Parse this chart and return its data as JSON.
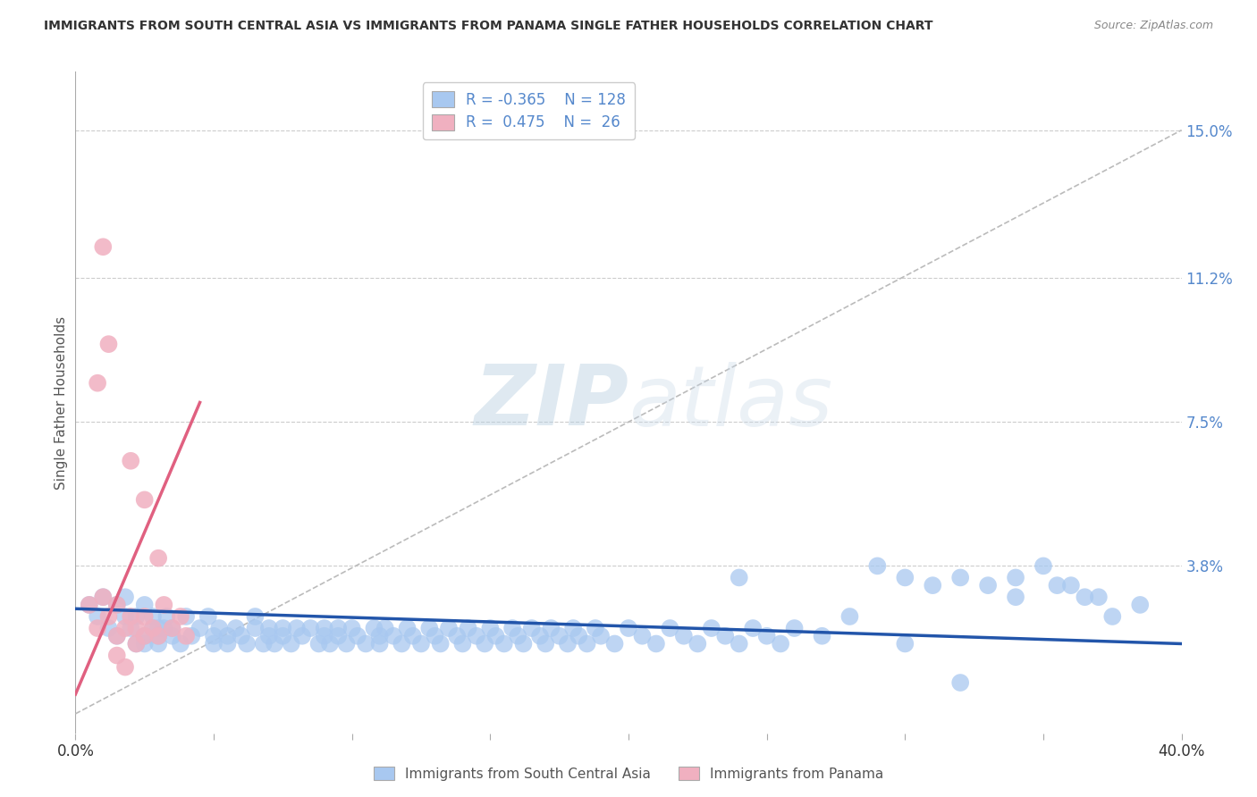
{
  "title": "IMMIGRANTS FROM SOUTH CENTRAL ASIA VS IMMIGRANTS FROM PANAMA SINGLE FATHER HOUSEHOLDS CORRELATION CHART",
  "source": "Source: ZipAtlas.com",
  "ylabel": "Single Father Households",
  "watermark_zip": "ZIP",
  "watermark_atlas": "atlas",
  "xlim": [
    0.0,
    0.4
  ],
  "ylim": [
    -0.005,
    0.165
  ],
  "ytick_positions": [
    0.038,
    0.075,
    0.112,
    0.15
  ],
  "ytick_labels": [
    "3.8%",
    "7.5%",
    "11.2%",
    "15.0%"
  ],
  "legend1_R": "-0.365",
  "legend1_N": "128",
  "legend2_R": "0.475",
  "legend2_N": "26",
  "legend1_label": "Immigrants from South Central Asia",
  "legend2_label": "Immigrants from Panama",
  "blue_color": "#a8c8f0",
  "blue_line_color": "#2255aa",
  "pink_color": "#f0b0c0",
  "pink_line_color": "#e06080",
  "grid_color": "#cccccc",
  "background_color": "#ffffff",
  "title_color": "#333333",
  "right_label_color": "#5588cc",
  "blue_scatter_x": [
    0.005,
    0.008,
    0.01,
    0.012,
    0.015,
    0.015,
    0.018,
    0.018,
    0.02,
    0.022,
    0.022,
    0.025,
    0.025,
    0.028,
    0.028,
    0.03,
    0.03,
    0.032,
    0.033,
    0.035,
    0.035,
    0.038,
    0.04,
    0.042,
    0.045,
    0.048,
    0.05,
    0.05,
    0.052,
    0.055,
    0.055,
    0.058,
    0.06,
    0.062,
    0.065,
    0.065,
    0.068,
    0.07,
    0.07,
    0.072,
    0.075,
    0.075,
    0.078,
    0.08,
    0.082,
    0.085,
    0.088,
    0.09,
    0.09,
    0.092,
    0.095,
    0.095,
    0.098,
    0.1,
    0.102,
    0.105,
    0.108,
    0.11,
    0.11,
    0.112,
    0.115,
    0.118,
    0.12,
    0.122,
    0.125,
    0.128,
    0.13,
    0.132,
    0.135,
    0.138,
    0.14,
    0.142,
    0.145,
    0.148,
    0.15,
    0.152,
    0.155,
    0.158,
    0.16,
    0.162,
    0.165,
    0.168,
    0.17,
    0.172,
    0.175,
    0.178,
    0.18,
    0.182,
    0.185,
    0.188,
    0.19,
    0.195,
    0.2,
    0.205,
    0.21,
    0.215,
    0.22,
    0.225,
    0.23,
    0.235,
    0.24,
    0.245,
    0.25,
    0.255,
    0.26,
    0.27,
    0.28,
    0.29,
    0.3,
    0.31,
    0.32,
    0.33,
    0.34,
    0.35,
    0.36,
    0.37,
    0.3,
    0.32,
    0.34,
    0.355,
    0.365,
    0.375,
    0.385,
    0.24,
    0.03,
    0.025,
    0.02,
    0.018
  ],
  "blue_scatter_y": [
    0.028,
    0.025,
    0.03,
    0.022,
    0.028,
    0.02,
    0.025,
    0.03,
    0.022,
    0.025,
    0.018,
    0.028,
    0.02,
    0.022,
    0.025,
    0.02,
    0.018,
    0.022,
    0.025,
    0.02,
    0.022,
    0.018,
    0.025,
    0.02,
    0.022,
    0.025,
    0.02,
    0.018,
    0.022,
    0.02,
    0.018,
    0.022,
    0.02,
    0.018,
    0.022,
    0.025,
    0.018,
    0.02,
    0.022,
    0.018,
    0.022,
    0.02,
    0.018,
    0.022,
    0.02,
    0.022,
    0.018,
    0.022,
    0.02,
    0.018,
    0.022,
    0.02,
    0.018,
    0.022,
    0.02,
    0.018,
    0.022,
    0.02,
    0.018,
    0.022,
    0.02,
    0.018,
    0.022,
    0.02,
    0.018,
    0.022,
    0.02,
    0.018,
    0.022,
    0.02,
    0.018,
    0.022,
    0.02,
    0.018,
    0.022,
    0.02,
    0.018,
    0.022,
    0.02,
    0.018,
    0.022,
    0.02,
    0.018,
    0.022,
    0.02,
    0.018,
    0.022,
    0.02,
    0.018,
    0.022,
    0.02,
    0.018,
    0.022,
    0.02,
    0.018,
    0.022,
    0.02,
    0.018,
    0.022,
    0.02,
    0.018,
    0.022,
    0.02,
    0.018,
    0.022,
    0.02,
    0.025,
    0.038,
    0.035,
    0.033,
    0.035,
    0.033,
    0.03,
    0.038,
    0.033,
    0.03,
    0.018,
    0.008,
    0.035,
    0.033,
    0.03,
    0.025,
    0.028,
    0.035,
    0.022,
    0.018
  ],
  "pink_scatter_x": [
    0.005,
    0.008,
    0.01,
    0.012,
    0.015,
    0.015,
    0.018,
    0.02,
    0.022,
    0.022,
    0.025,
    0.025,
    0.028,
    0.03,
    0.032,
    0.035,
    0.038,
    0.04,
    0.015,
    0.018,
    0.008,
    0.02,
    0.025,
    0.03,
    0.01,
    0.012
  ],
  "pink_scatter_y": [
    0.028,
    0.022,
    0.03,
    0.025,
    0.028,
    0.02,
    0.022,
    0.025,
    0.018,
    0.022,
    0.025,
    0.02,
    0.022,
    0.02,
    0.028,
    0.022,
    0.025,
    0.02,
    0.015,
    0.012,
    0.085,
    0.065,
    0.055,
    0.04,
    0.12,
    0.095
  ],
  "blue_trend": [
    0.0,
    0.4,
    0.027,
    0.018
  ],
  "pink_trend": [
    0.0,
    0.045,
    0.005,
    0.08
  ],
  "ref_line": [
    0.0,
    0.0,
    0.4,
    0.15
  ]
}
